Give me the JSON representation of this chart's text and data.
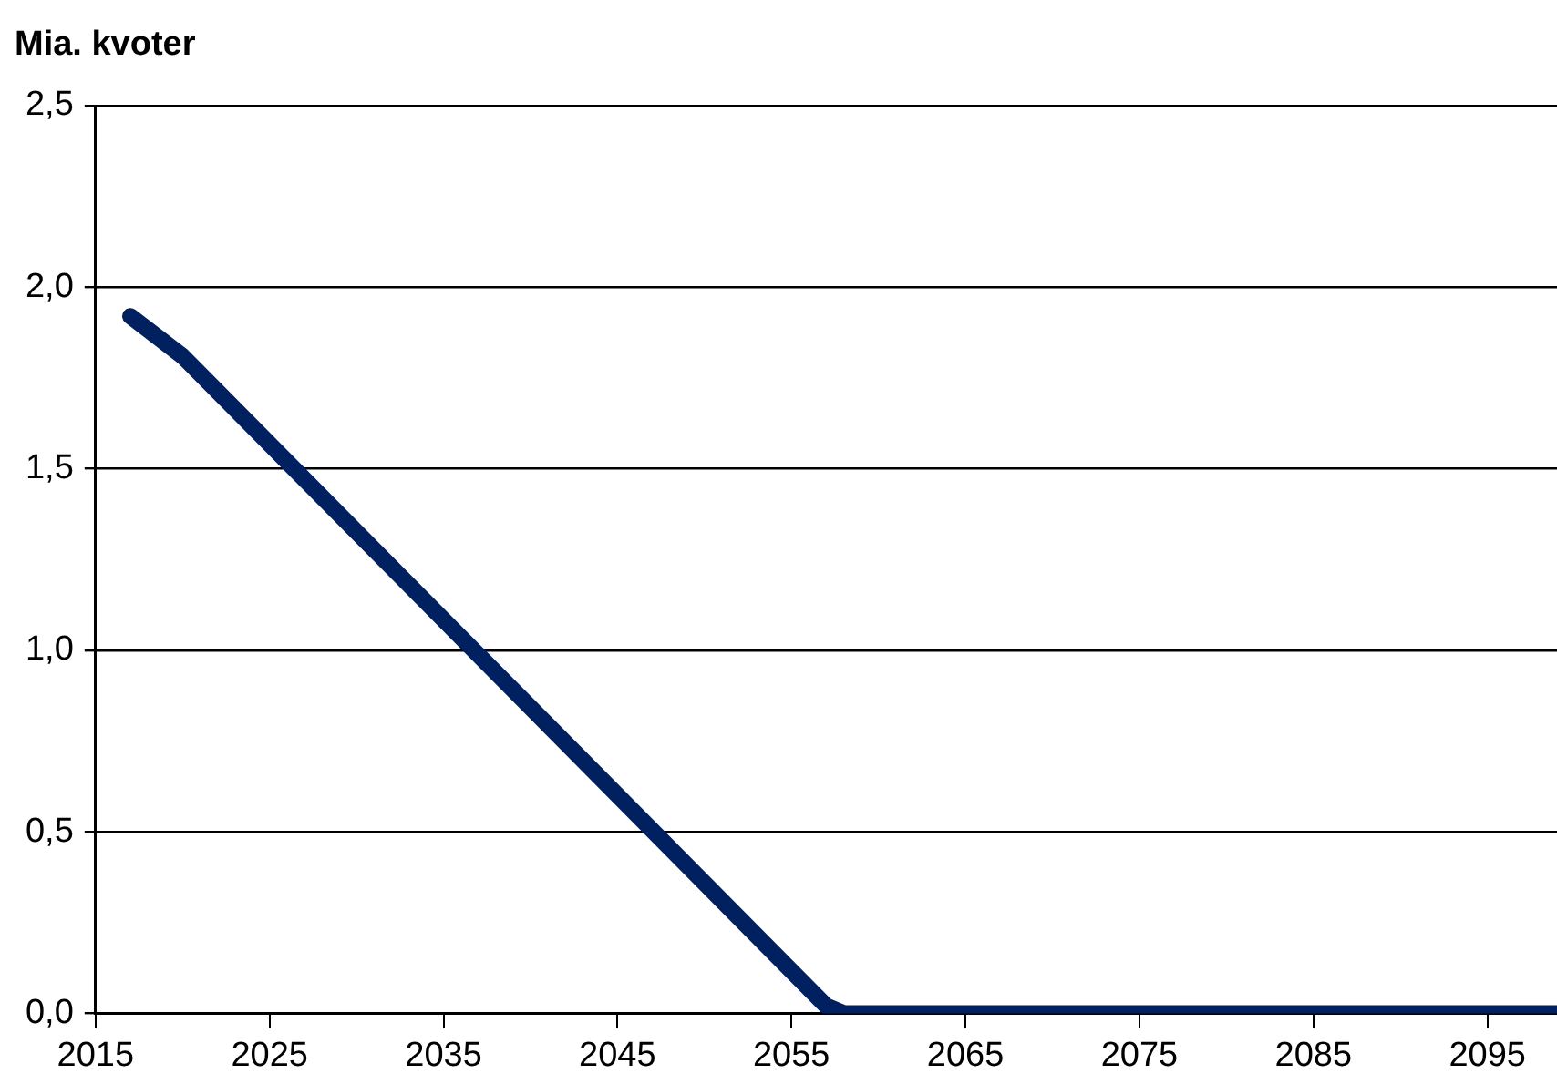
{
  "chart_data": {
    "type": "line",
    "title": "Mia. kvoter",
    "series": [
      {
        "color": "#002060",
        "x": [
          2017,
          2020,
          2057,
          2058,
          2099
        ],
        "values": [
          1.92,
          1.81,
          0.02,
          0,
          0
        ]
      }
    ],
    "xlim": [
      2015,
      2099
    ],
    "xticks": [
      2015,
      2025,
      2035,
      2045,
      2055,
      2065,
      2075,
      2085,
      2095
    ],
    "ylim": [
      0,
      2.5
    ],
    "yticks": [
      {
        "value": 0,
        "label": "0,0"
      },
      {
        "value": 0.5,
        "label": "0,5"
      },
      {
        "value": 1,
        "label": "1,0"
      },
      {
        "value": 1.5,
        "label": "1,5"
      },
      {
        "value": 2,
        "label": "2,0"
      },
      {
        "value": 2.5,
        "label": "2,5"
      }
    ],
    "grid": "y",
    "legend": false,
    "marker": "none",
    "line_style": "solid"
  }
}
